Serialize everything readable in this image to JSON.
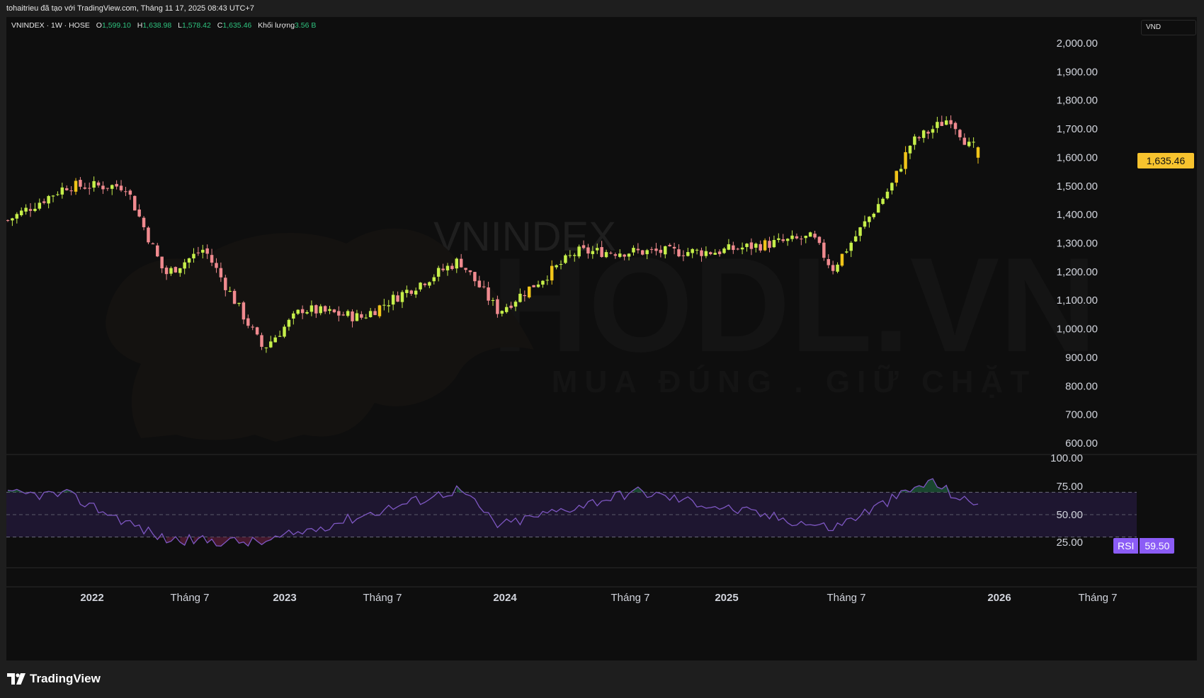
{
  "caption": "tohaitrieu đã tạo với TradingView.com, Tháng 11 17, 2025 08:43 UTC+7",
  "symbol": {
    "name": "VNINDEX · 1W · HOSE",
    "open_label": "O",
    "open": "1,599.10",
    "high_label": "H",
    "high": "1,638.98",
    "low_label": "L",
    "low": "1,578.42",
    "close_label": "C",
    "close": "1,635.46",
    "volume_label": "Khối lượng",
    "volume": "3.56 B"
  },
  "currency": "VND",
  "last_price": "1,635.46",
  "rsi": {
    "name": "RSI",
    "value": "59.50"
  },
  "watermark": {
    "symbol": "VNINDEX",
    "brand": "HODL.VN",
    "slogan": "MUA ĐÚNG . GIỮ CHẶT"
  },
  "footer": {
    "brand": "TradingView"
  },
  "colors": {
    "up": "#c6ef4a",
    "up_dark": "#f0c419",
    "down": "#f08a8f",
    "rsi_line": "#7e57c2",
    "rsi_band": "#1e1630",
    "price_badge": "#f7c32e"
  },
  "chart_data": [
    {
      "type": "candlestick",
      "title": "VNINDEX · 1W · HOSE",
      "y_axis": {
        "ticks": [
          "2,000.00",
          "1,900.00",
          "1,800.00",
          "1,700.00",
          "1,600.00",
          "1,500.00",
          "1,400.00",
          "1,300.00",
          "1,200.00",
          "1,100.00",
          "1,000.00",
          "900.00",
          "800.00",
          "700.00",
          "600.00"
        ],
        "range": [
          580,
          2010
        ],
        "grid": false
      },
      "x_axis": {
        "ticks": [
          {
            "label": "2022",
            "year": true
          },
          {
            "label": "Tháng 7",
            "year": false
          },
          {
            "label": "2023",
            "year": true
          },
          {
            "label": "Tháng 7",
            "year": false
          },
          {
            "label": "2024",
            "year": true
          },
          {
            "label": "Tháng 7",
            "year": false
          },
          {
            "label": "2025",
            "year": true
          },
          {
            "label": "Tháng 7",
            "year": false
          },
          {
            "label": "2026",
            "year": true
          },
          {
            "label": "Tháng 7",
            "year": false
          }
        ]
      },
      "key_points": [
        {
          "label": "2021-10",
          "close": 1380
        },
        {
          "label": "2022-01",
          "close": 1500
        },
        {
          "label": "2022-04",
          "close": 1500
        },
        {
          "label": "2022-06",
          "close": 1190
        },
        {
          "label": "2022-08",
          "close": 1280
        },
        {
          "label": "2022-11",
          "close": 930
        },
        {
          "label": "2023-01",
          "close": 1070
        },
        {
          "label": "2023-04",
          "close": 1040
        },
        {
          "label": "2023-09",
          "close": 1240
        },
        {
          "label": "2023-11",
          "close": 1060
        },
        {
          "label": "2024-03",
          "close": 1270
        },
        {
          "label": "2024-06",
          "close": 1270
        },
        {
          "label": "2024-10",
          "close": 1270
        },
        {
          "label": "2025-03",
          "close": 1320
        },
        {
          "label": "2025-04",
          "close": 1210
        },
        {
          "label": "2025-07",
          "close": 1500
        },
        {
          "label": "2025-08",
          "close": 1650
        },
        {
          "label": "2025-10",
          "close": 1740
        },
        {
          "label": "2025-11",
          "close": 1635.46
        }
      ],
      "last": {
        "open": 1599.1,
        "high": 1638.98,
        "low": 1578.42,
        "close": 1635.46
      }
    },
    {
      "type": "line",
      "title": "RSI",
      "y_axis": {
        "ticks": [
          "100.00",
          "75.00",
          "50.00",
          "25.00"
        ],
        "range": [
          0,
          100
        ]
      },
      "bands": [
        30,
        50,
        70
      ],
      "last": 59.5,
      "key_points": [
        {
          "label": "2022-01",
          "value": 68
        },
        {
          "label": "2022-06",
          "value": 28
        },
        {
          "label": "2022-11",
          "value": 25
        },
        {
          "label": "2023-09",
          "value": 73
        },
        {
          "label": "2023-11",
          "value": 40
        },
        {
          "label": "2024-06",
          "value": 71
        },
        {
          "label": "2025-04",
          "value": 38
        },
        {
          "label": "2025-09",
          "value": 80
        },
        {
          "label": "2025-11",
          "value": 59.5
        }
      ]
    }
  ]
}
